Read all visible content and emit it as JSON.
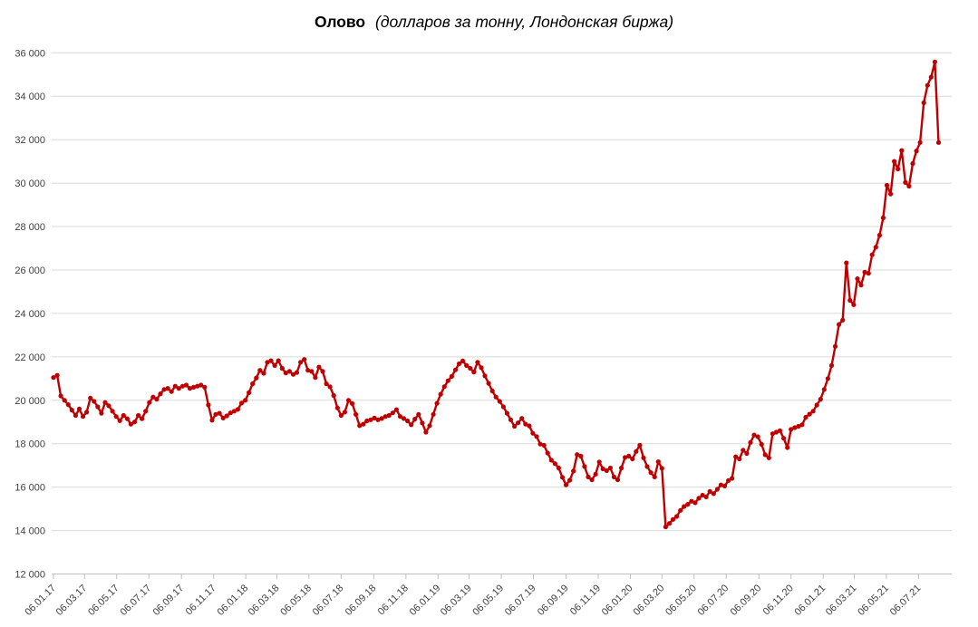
{
  "title": {
    "main": "Олово",
    "subtitle": "(долларов за тонну, Лондонская биржа)"
  },
  "colors": {
    "background": "#FFFFFF",
    "line": "#C00000",
    "grid": "#D9D9D9",
    "axis": "#BFBFBF",
    "axis_label": "#404040",
    "title": "#000000"
  },
  "chart_data": {
    "type": "line",
    "series_name": "Олово",
    "unit": "долларов за тонну",
    "exchange": "Лондонская биржа",
    "marker": "circle",
    "grid": "horizontal",
    "legend": "none",
    "xlabel": "",
    "ylabel": "",
    "ylim": [
      12000,
      36000
    ],
    "y_tick_step": 2000,
    "y_tick_labels": [
      "12 000",
      "14 000",
      "16 000",
      "18 000",
      "20 000",
      "22 000",
      "24 000",
      "26 000",
      "28 000",
      "30 000",
      "32 000",
      "34 000",
      "36 000"
    ],
    "x_tick_labels": [
      "06.01.17",
      "06.03.17",
      "06.05.17",
      "06.07.17",
      "06.09.17",
      "06.11.17",
      "06.01.18",
      "06.03.18",
      "06.05.18",
      "06.07.18",
      "06.09.18",
      "06.11.18",
      "06.01.19",
      "06.03.19",
      "06.05.19",
      "06.07.19",
      "06.09.19",
      "06.11.19",
      "06.01.20",
      "06.03.20",
      "06.05.20",
      "06.07.20",
      "06.09.20",
      "06.11.20",
      "06.01.21",
      "06.03.21",
      "06.05.21",
      "06.07.21"
    ],
    "start_date": "2017-01-06",
    "interval_days": 7,
    "x_domain_days": 1705,
    "values": [
      21050,
      21150,
      20200,
      20000,
      19800,
      19550,
      19300,
      19600,
      19250,
      19450,
      20100,
      19950,
      19700,
      19400,
      19900,
      19750,
      19500,
      19250,
      19060,
      19300,
      19150,
      18900,
      19000,
      19300,
      19150,
      19500,
      19900,
      20150,
      20050,
      20300,
      20500,
      20550,
      20400,
      20650,
      20550,
      20650,
      20700,
      20550,
      20600,
      20650,
      20700,
      20600,
      19780,
      19080,
      19350,
      19400,
      19180,
      19280,
      19420,
      19500,
      19580,
      19870,
      20000,
      20350,
      20760,
      21030,
      21380,
      21240,
      21750,
      21820,
      21600,
      21820,
      21470,
      21260,
      21330,
      21190,
      21280,
      21750,
      21880,
      21380,
      21330,
      21050,
      21530,
      21330,
      20760,
      20620,
      20220,
      19650,
      19300,
      19450,
      20000,
      19850,
      19350,
      18830,
      18900,
      19050,
      19100,
      19180,
      19100,
      19160,
      19250,
      19300,
      19420,
      19570,
      19250,
      19160,
      19050,
      18870,
      19130,
      19350,
      18950,
      18530,
      18830,
      19350,
      19860,
      20280,
      20630,
      20900,
      21100,
      21400,
      21680,
      21810,
      21600,
      21470,
      21300,
      21750,
      21500,
      21120,
      20780,
      20430,
      20150,
      19950,
      19700,
      19400,
      19100,
      18800,
      18960,
      19170,
      18900,
      18820,
      18480,
      18330,
      17980,
      17930,
      17570,
      17240,
      17080,
      16880,
      16450,
      16100,
      16320,
      16740,
      17500,
      17430,
      16950,
      16470,
      16340,
      16600,
      17160,
      16840,
      16760,
      16880,
      16470,
      16340,
      16880,
      17370,
      17430,
      17300,
      17640,
      17930,
      17350,
      16950,
      16670,
      16470,
      17170,
      16870,
      14170,
      14330,
      14510,
      14650,
      14930,
      15110,
      15210,
      15350,
      15280,
      15490,
      15630,
      15550,
      15800,
      15700,
      15900,
      16100,
      16050,
      16300,
      16400,
      17400,
      17300,
      17700,
      17550,
      18060,
      18400,
      18320,
      17970,
      17490,
      17350,
      18460,
      18530,
      18600,
      18250,
      17820,
      18660,
      18740,
      18800,
      18870,
      19220,
      19360,
      19500,
      19780,
      20050,
      20500,
      21000,
      21600,
      22480,
      23490,
      23690,
      26330,
      24600,
      24400,
      25600,
      25300,
      25900,
      25850,
      26700,
      27050,
      27600,
      28400,
      29900,
      29500,
      31000,
      30650,
      31500,
      30030,
      29860,
      30900,
      31480,
      31870,
      33700,
      34500,
      34880,
      35580,
      31870
    ]
  }
}
